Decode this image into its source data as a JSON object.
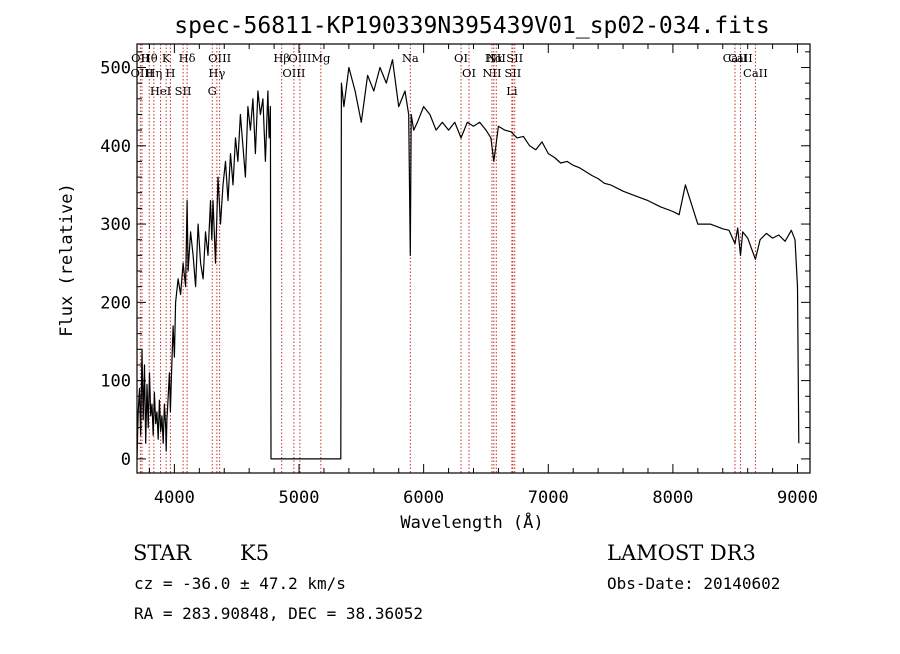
{
  "chart_data": {
    "type": "line",
    "title": "spec-56811-KP190339N395439V01_sp02-034.fits",
    "xlabel": "Wavelength (Å)",
    "ylabel": "Flux (relative)",
    "xlim": [
      3700,
      9100
    ],
    "ylim": [
      -18,
      530
    ],
    "x_ticks": [
      4000,
      5000,
      6000,
      7000,
      8000,
      9000
    ],
    "y_ticks": [
      0,
      100,
      200,
      300,
      400,
      500
    ],
    "spectrum": {
      "name": "flux",
      "x": [
        3700,
        3710,
        3720,
        3730,
        3740,
        3750,
        3760,
        3770,
        3780,
        3790,
        3800,
        3810,
        3820,
        3830,
        3840,
        3850,
        3860,
        3870,
        3880,
        3890,
        3900,
        3910,
        3920,
        3930,
        3934,
        3940,
        3950,
        3960,
        3968,
        3975,
        3990,
        4000,
        4010,
        4030,
        4050,
        4070,
        4090,
        4102,
        4110,
        4130,
        4150,
        4170,
        4190,
        4210,
        4230,
        4250,
        4270,
        4290,
        4300,
        4310,
        4330,
        4350,
        4370,
        4390,
        4410,
        4430,
        4450,
        4470,
        4490,
        4510,
        4530,
        4550,
        4570,
        4590,
        4610,
        4630,
        4650,
        4670,
        4690,
        4710,
        4730,
        4750,
        4760,
        4770,
        4775,
        5335,
        5340,
        5360,
        5400,
        5450,
        5500,
        5550,
        5600,
        5650,
        5700,
        5750,
        5800,
        5850,
        5880,
        5893,
        5900,
        5920,
        5950,
        6000,
        6050,
        6100,
        6150,
        6200,
        6250,
        6300,
        6350,
        6400,
        6450,
        6500,
        6540,
        6563,
        6580,
        6600,
        6650,
        6700,
        6750,
        6800,
        6850,
        6900,
        6950,
        7000,
        7050,
        7100,
        7150,
        7200,
        7250,
        7300,
        7350,
        7400,
        7450,
        7500,
        7600,
        7700,
        7800,
        7900,
        8000,
        8050,
        8100,
        8200,
        8300,
        8400,
        8450,
        8498,
        8520,
        8542,
        8560,
        8600,
        8662,
        8700,
        8750,
        8800,
        8850,
        8900,
        8950,
        8980,
        9000,
        9010
      ],
      "y": [
        0,
        60,
        90,
        30,
        140,
        50,
        120,
        20,
        95,
        40,
        110,
        55,
        70,
        30,
        85,
        45,
        60,
        25,
        75,
        35,
        55,
        20,
        70,
        40,
        10,
        50,
        80,
        110,
        60,
        100,
        170,
        130,
        200,
        230,
        210,
        250,
        220,
        330,
        240,
        290,
        260,
        220,
        300,
        250,
        230,
        290,
        260,
        330,
        280,
        330,
        250,
        360,
        300,
        350,
        380,
        330,
        390,
        350,
        410,
        380,
        440,
        400,
        360,
        450,
        420,
        460,
        390,
        470,
        440,
        460,
        380,
        470,
        410,
        450,
        0,
        0,
        480,
        450,
        500,
        470,
        430,
        490,
        470,
        500,
        480,
        510,
        450,
        470,
        440,
        260,
        440,
        420,
        430,
        450,
        440,
        420,
        430,
        420,
        430,
        410,
        430,
        425,
        430,
        420,
        410,
        380,
        400,
        425,
        420,
        418,
        410,
        412,
        400,
        395,
        405,
        390,
        385,
        378,
        380,
        375,
        372,
        367,
        362,
        358,
        352,
        350,
        342,
        336,
        330,
        322,
        316,
        312,
        350,
        300,
        300,
        294,
        292,
        275,
        295,
        260,
        290,
        282,
        255,
        280,
        288,
        282,
        286,
        278,
        292,
        280,
        220,
        20
      ]
    },
    "emission_lines": [
      {
        "name": "Hθ",
        "wavelength": 3798
      },
      {
        "name": "OII",
        "wavelength": 3727
      },
      {
        "name": "OIII",
        "wavelength": 3740
      },
      {
        "name": "K",
        "wavelength": 3934
      },
      {
        "name": "Hη",
        "wavelength": 3835
      },
      {
        "name": "HeI",
        "wavelength": 3889
      },
      {
        "name": "H",
        "wavelength": 3968
      },
      {
        "name": "Hδ",
        "wavelength": 4102
      },
      {
        "name": "SII",
        "wavelength": 4070
      },
      {
        "name": "OIII",
        "wavelength": 4363
      },
      {
        "name": "Hγ",
        "wavelength": 4341
      },
      {
        "name": "G",
        "wavelength": 4304
      },
      {
        "name": "Hβ",
        "wavelength": 4861
      },
      {
        "name": "OIII",
        "wavelength": 4959
      },
      {
        "name": "OIII",
        "wavelength": 5007
      },
      {
        "name": "Mg",
        "wavelength": 5175
      },
      {
        "name": "Na",
        "wavelength": 5893
      },
      {
        "name": "OI",
        "wavelength": 6300
      },
      {
        "name": "OI",
        "wavelength": 6364
      },
      {
        "name": "Hα",
        "wavelength": 6563
      },
      {
        "name": "NII",
        "wavelength": 6548
      },
      {
        "name": "NII",
        "wavelength": 6583
      },
      {
        "name": "SII",
        "wavelength": 6716
      },
      {
        "name": "Li",
        "wavelength": 6708
      },
      {
        "name": "SII",
        "wavelength": 6731
      },
      {
        "name": "CaII",
        "wavelength": 8542
      },
      {
        "name": "CaII",
        "wavelength": 8498
      },
      {
        "name": "CaII",
        "wavelength": 8662
      }
    ]
  },
  "info": {
    "object_class": "STAR",
    "subclass": "K5",
    "survey": "LAMOST DR3",
    "redshift": "cz = -36.0 ± 47.2 km/s",
    "obs_date": "Obs-Date: 20140602",
    "coords": "RA = 283.90848, DEC =  38.36052"
  },
  "colors": {
    "line_marker": "#c8322a",
    "spectrum": "#000000",
    "axes": "#000000"
  }
}
